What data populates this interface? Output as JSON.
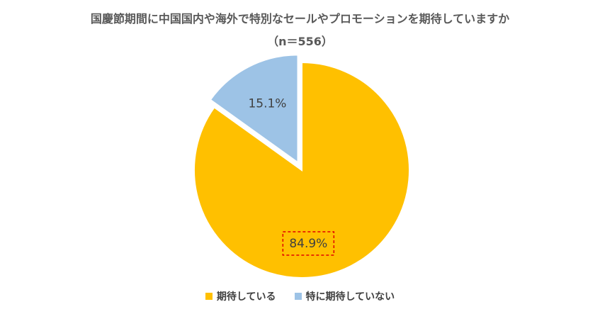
{
  "chart_data": {
    "type": "pie",
    "title": "国慶節期間に中国国内や海外で特別なセールやプロモーションを期待していますか",
    "subtitle": "（n＝556）",
    "slices": [
      {
        "label": "期待している",
        "value": 84.9,
        "display": "84.9%",
        "color": "#FFC000",
        "highlighted": true
      },
      {
        "label": "特に期待していない",
        "value": 15.1,
        "display": "15.1%",
        "color": "#9DC3E6",
        "exploded": true
      }
    ],
    "legend_position": "bottom"
  }
}
